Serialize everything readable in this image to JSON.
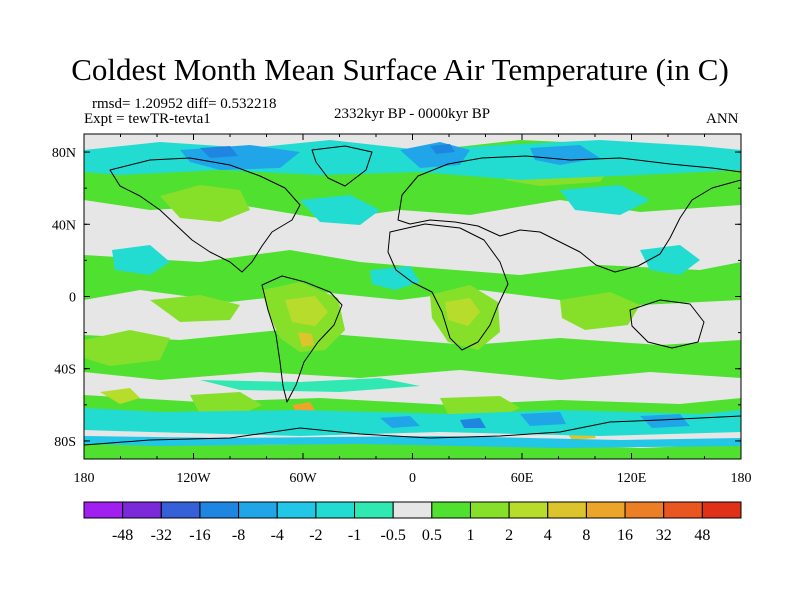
{
  "title": "Coldest Month Mean Surface Air Temperature (in C)",
  "stats": "rmsd= 1.20952 diff= 0.532218",
  "experiment": "Expt = tewTR-tevta1",
  "period": "2332kyr BP - 0000kyr BP",
  "season": "ANN",
  "map": {
    "projection": "cylindrical-equidistant",
    "lon_range": [
      -180,
      180
    ],
    "lat_range": [
      -90,
      90
    ],
    "background_level": "-0.5 to 0.5",
    "x_ticks": [
      {
        "lon": -180,
        "label": "180"
      },
      {
        "lon": -120,
        "label": "120W"
      },
      {
        "lon": -60,
        "label": "60W"
      },
      {
        "lon": 0,
        "label": "0"
      },
      {
        "lon": 60,
        "label": "60E"
      },
      {
        "lon": 120,
        "label": "120E"
      },
      {
        "lon": 180,
        "label": "180"
      }
    ],
    "y_ticks": [
      {
        "lat": 80,
        "label": "80N"
      },
      {
        "lat": 40,
        "label": "40N"
      },
      {
        "lat": 0,
        "label": "0"
      },
      {
        "lat": -40,
        "label": "40S"
      },
      {
        "lat": -80,
        "label": "80S"
      }
    ]
  },
  "colorbar": {
    "colors": [
      "#a020f0",
      "#7a2ad8",
      "#3560d8",
      "#1e86e0",
      "#20a6e8",
      "#22c6e6",
      "#22dcd2",
      "#30e8b2",
      "#e6e6e6",
      "#50e030",
      "#86e02a",
      "#b8dc2c",
      "#dcc42c",
      "#eca42a",
      "#ec7e26",
      "#ea5620",
      "#e03018"
    ],
    "labels": [
      "-48",
      "-32",
      "-16",
      "-8",
      "-4",
      "-2",
      "-1",
      "-0.5",
      "0.5",
      "1",
      "2",
      "4",
      "8",
      "16",
      "32",
      "48"
    ]
  }
}
